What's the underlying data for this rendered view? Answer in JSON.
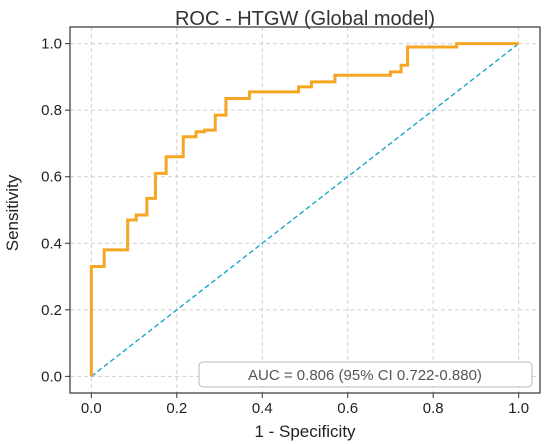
{
  "chart_data": {
    "type": "line",
    "title": "ROC - HTGW (Global model)",
    "xlabel": "1 - Specificity",
    "ylabel": "Sensitivity",
    "xlim": [
      -0.05,
      1.05
    ],
    "ylim": [
      -0.05,
      1.05
    ],
    "xticks": [
      0.0,
      0.2,
      0.4,
      0.6,
      0.8,
      1.0
    ],
    "yticks": [
      0.0,
      0.2,
      0.4,
      0.6,
      0.8,
      1.0
    ],
    "xtick_labels": [
      "0.0",
      "0.2",
      "0.4",
      "0.6",
      "0.8",
      "1.0"
    ],
    "ytick_labels": [
      "0.0",
      "0.2",
      "0.4",
      "0.6",
      "0.8",
      "1.0"
    ],
    "grid": true,
    "annotation": "AUC = 0.806 (95% CI 0.722-0.880)",
    "annotation_placement": "bottom-right",
    "series": [
      {
        "color": "#f5a623",
        "style": "solid-step",
        "x": [
          0.0,
          0.0,
          0.01,
          0.01,
          0.03,
          0.03,
          0.085,
          0.085,
          0.105,
          0.105,
          0.13,
          0.13,
          0.15,
          0.15,
          0.175,
          0.175,
          0.2,
          0.2,
          0.215,
          0.215,
          0.245,
          0.245,
          0.265,
          0.265,
          0.29,
          0.29,
          0.315,
          0.315,
          0.37,
          0.37,
          0.485,
          0.485,
          0.515,
          0.515,
          0.57,
          0.57,
          0.665,
          0.665,
          0.7,
          0.7,
          0.725,
          0.725,
          0.74,
          0.74,
          0.855,
          0.855,
          1.0
        ],
        "y": [
          0.0,
          0.33,
          0.33,
          0.33,
          0.33,
          0.38,
          0.38,
          0.47,
          0.47,
          0.485,
          0.485,
          0.535,
          0.535,
          0.61,
          0.61,
          0.66,
          0.66,
          0.66,
          0.66,
          0.72,
          0.72,
          0.735,
          0.735,
          0.74,
          0.74,
          0.785,
          0.785,
          0.835,
          0.835,
          0.855,
          0.855,
          0.87,
          0.87,
          0.885,
          0.885,
          0.905,
          0.905,
          0.905,
          0.905,
          0.915,
          0.915,
          0.935,
          0.935,
          0.99,
          0.99,
          1.0,
          1.0
        ]
      },
      {
        "color": "#1aa7c9",
        "style": "dashed",
        "x": [
          0.0,
          1.0
        ],
        "y": [
          0.0,
          1.0
        ]
      }
    ]
  }
}
